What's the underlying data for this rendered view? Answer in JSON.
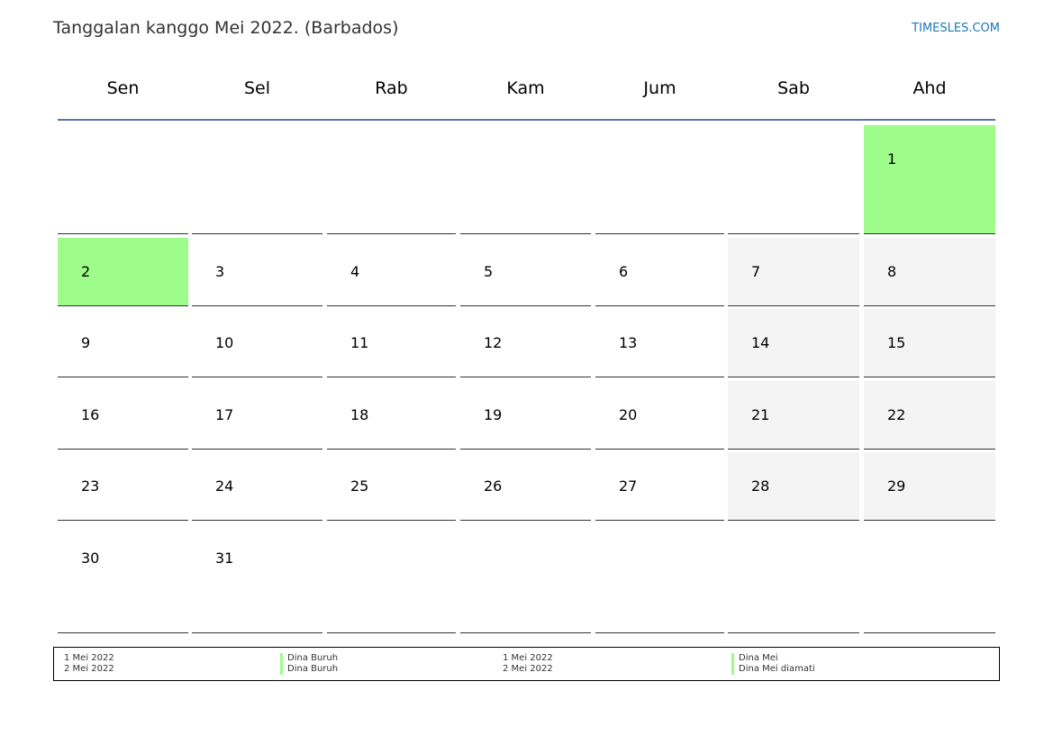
{
  "header": {
    "title": "Tanggalan kanggo Mei 2022. (Barbados)",
    "site": "TIMESLES.COM"
  },
  "colors": {
    "holiday": "#9efc8a",
    "weekend": "#f4f4f4",
    "header_rule": "#5a75a0",
    "link": "#1f78b4"
  },
  "weekdays": [
    "Sen",
    "Sel",
    "Rab",
    "Kam",
    "Jum",
    "Sab",
    "Ahd"
  ],
  "weeks": [
    [
      null,
      null,
      null,
      null,
      null,
      null,
      1
    ],
    [
      2,
      3,
      4,
      5,
      6,
      7,
      8
    ],
    [
      9,
      10,
      11,
      12,
      13,
      14,
      15
    ],
    [
      16,
      17,
      18,
      19,
      20,
      21,
      22
    ],
    [
      23,
      24,
      25,
      26,
      27,
      28,
      29
    ],
    [
      30,
      31,
      null,
      null,
      null,
      null,
      null
    ]
  ],
  "holiday_days": [
    1,
    2
  ],
  "legend": [
    {
      "dates": [
        "1 Mei 2022",
        "2 Mei 2022"
      ],
      "names": [
        "Dina Buruh",
        "Dina Buruh"
      ]
    },
    {
      "dates": [
        "1 Mei 2022",
        "2 Mei 2022"
      ],
      "names": [
        "Dina Mei",
        "Dina Mei diamati"
      ]
    }
  ]
}
